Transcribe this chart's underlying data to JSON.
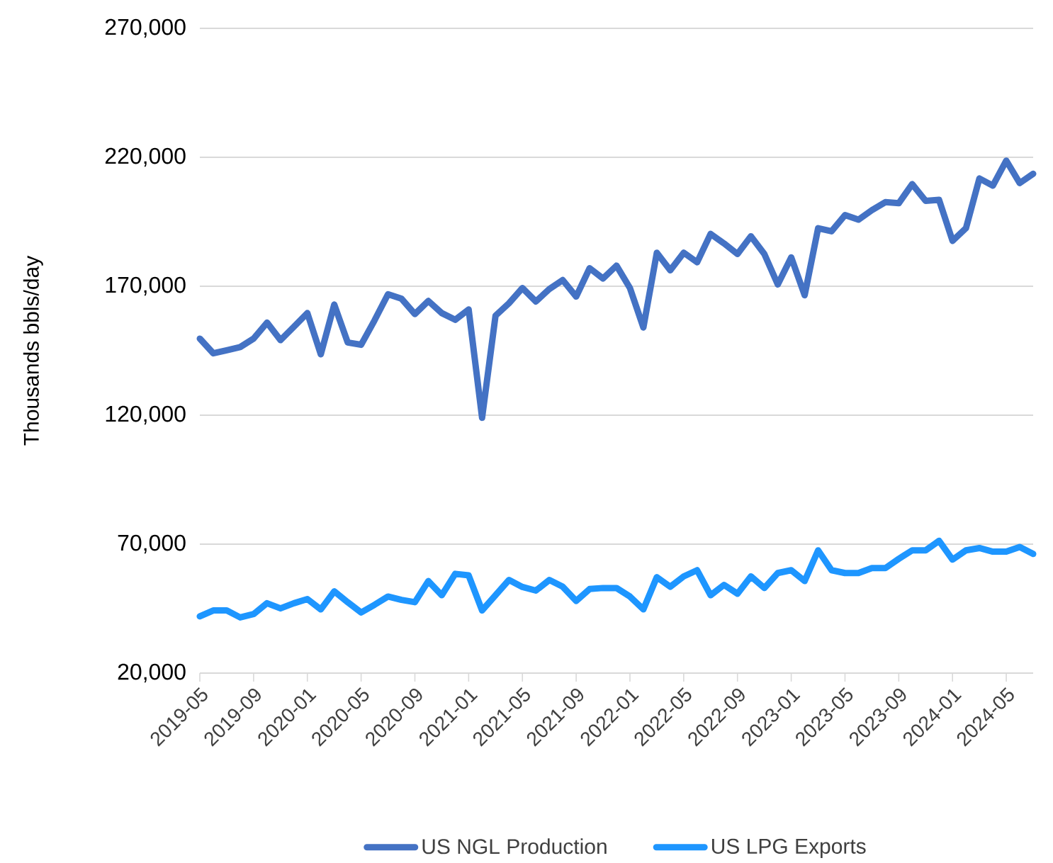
{
  "chart_data": {
    "type": "line",
    "ylabel": "Thousands bbls/day",
    "x": [
      "2019-05",
      "2019-06",
      "2019-07",
      "2019-08",
      "2019-09",
      "2019-10",
      "2019-11",
      "2019-12",
      "2020-01",
      "2020-02",
      "2020-03",
      "2020-04",
      "2020-05",
      "2020-06",
      "2020-07",
      "2020-08",
      "2020-09",
      "2020-10",
      "2020-11",
      "2020-12",
      "2021-01",
      "2021-02",
      "2021-03",
      "2021-04",
      "2021-05",
      "2021-06",
      "2021-07",
      "2021-08",
      "2021-09",
      "2021-10",
      "2021-11",
      "2021-12",
      "2022-01",
      "2022-02",
      "2022-03",
      "2022-04",
      "2022-05",
      "2022-06",
      "2022-07",
      "2022-08",
      "2022-09",
      "2022-10",
      "2022-11",
      "2022-12",
      "2023-01",
      "2023-02",
      "2023-03",
      "2023-04",
      "2023-05",
      "2023-06",
      "2023-07",
      "2023-08",
      "2023-09",
      "2023-10",
      "2023-11",
      "2023-12",
      "2024-01",
      "2024-02",
      "2024-03",
      "2024-04",
      "2024-05",
      "2024-06",
      "2024-07"
    ],
    "series": [
      {
        "name": "US NGL Production",
        "color": "#4472c4",
        "values": [
          149700,
          144000,
          145200,
          146400,
          149700,
          155900,
          149100,
          154300,
          159600,
          143600,
          162900,
          148200,
          147300,
          156800,
          166900,
          165200,
          159200,
          164300,
          159600,
          157000,
          161000,
          119000,
          158600,
          163400,
          169300,
          164100,
          168900,
          172400,
          166000,
          177000,
          173000,
          178000,
          169300,
          154000,
          183000,
          176200,
          183000,
          179300,
          190300,
          186600,
          182500,
          189400,
          182500,
          170700,
          181200,
          166500,
          192500,
          191300,
          197600,
          195800,
          199500,
          202600,
          202200,
          209600,
          203100,
          203500,
          187600,
          192500,
          211800,
          209000,
          218700,
          210000,
          213600
        ]
      },
      {
        "name": "US LPG Exports",
        "color": "#1e96ff",
        "values": [
          42000,
          44300,
          44300,
          41600,
          42900,
          47100,
          45100,
          47100,
          48700,
          44700,
          51700,
          47500,
          43500,
          46500,
          49700,
          48400,
          47500,
          55700,
          50200,
          58500,
          57900,
          44300,
          50200,
          56100,
          53400,
          52000,
          56100,
          53500,
          48000,
          52600,
          53000,
          53000,
          49700,
          44700,
          57200,
          53500,
          57500,
          59900,
          50200,
          54200,
          50800,
          57500,
          53000,
          58800,
          59900,
          55700,
          67600,
          59900,
          58800,
          58800,
          60700,
          60700,
          64300,
          67600,
          67600,
          71300,
          64000,
          67600,
          68500,
          67100,
          67100,
          68900,
          66200
        ]
      }
    ],
    "xlim": [
      "2019-05",
      "2024-07"
    ],
    "xticks": [
      "2019-05",
      "2019-09",
      "2020-01",
      "2020-05",
      "2020-09",
      "2021-01",
      "2021-05",
      "2021-09",
      "2022-01",
      "2022-05",
      "2022-09",
      "2023-01",
      "2023-05",
      "2023-09",
      "2024-01",
      "2024-05"
    ],
    "ylim": [
      20000,
      270000
    ],
    "yticks": [
      {
        "value": 20000,
        "label": "20,000"
      },
      {
        "value": 70000,
        "label": "70,000"
      },
      {
        "value": 120000,
        "label": "120,000"
      },
      {
        "value": 170000,
        "label": "170,000"
      },
      {
        "value": 220000,
        "label": "220,000"
      },
      {
        "value": 270000,
        "label": "270,000"
      }
    ],
    "grid": "y",
    "legend": "bottom"
  }
}
